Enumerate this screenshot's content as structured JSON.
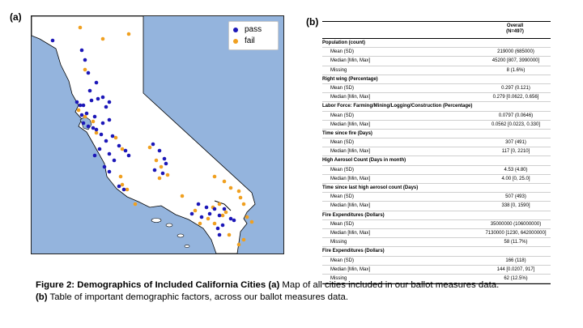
{
  "panels": {
    "a_label": "(a)",
    "b_label": "(b)"
  },
  "map": {
    "legend": [
      {
        "label": "pass",
        "color": "#1c17b8",
        "icon": "pass-dot-icon"
      },
      {
        "label": "fail",
        "color": "#f0a020",
        "icon": "fail-dot-icon"
      }
    ],
    "colors": {
      "ocean": "#94b4dd",
      "land": "#ffffff",
      "border": "#000000"
    }
  },
  "table": {
    "header": {
      "line1": "Overall",
      "line2": "(N=497)"
    },
    "rows": [
      {
        "type": "section",
        "label": "Population (count)",
        "value": ""
      },
      {
        "type": "stat",
        "label": "Mean (SD)",
        "value": "219000 (685000)"
      },
      {
        "type": "stat",
        "label": "Median [Min, Max]",
        "value": "45200 [807, 3990000]"
      },
      {
        "type": "stat",
        "label": "Missing",
        "value": "8 (1.6%)"
      },
      {
        "type": "section",
        "label": "Right wing (Percentage)",
        "value": ""
      },
      {
        "type": "stat",
        "label": "Mean (SD)",
        "value": "0.297 (0.121)"
      },
      {
        "type": "stat",
        "label": "Median [Min, Max]",
        "value": "0.279 [0.0622, 0.656]"
      },
      {
        "type": "section",
        "label": "Labor Force: Farming/Mining/Logging/Construction (Percentage)",
        "value": ""
      },
      {
        "type": "stat",
        "label": "Mean (SD)",
        "value": "0.0797 (0.0646)"
      },
      {
        "type": "stat",
        "label": "Median [Min, Max]",
        "value": "0.0562 [0.0223, 0.330]"
      },
      {
        "type": "section",
        "label": "Time since fire (Days)",
        "value": ""
      },
      {
        "type": "stat",
        "label": "Mean (SD)",
        "value": "307 (491)"
      },
      {
        "type": "stat",
        "label": "Median [Min, Max]",
        "value": "117 [0, 2210]"
      },
      {
        "type": "section",
        "label": "High Aerosol Count (Days in month)",
        "value": ""
      },
      {
        "type": "stat",
        "label": "Mean (SD)",
        "value": "4.53 (4.80)"
      },
      {
        "type": "stat",
        "label": "Median [Min, Max]",
        "value": "4.00 [0, 25.0]"
      },
      {
        "type": "section",
        "label": "Time since last high aerosol count (Days)",
        "value": ""
      },
      {
        "type": "stat",
        "label": "Mean (SD)",
        "value": "507 (493)"
      },
      {
        "type": "stat",
        "label": "Median [Min, Max]",
        "value": "338 [0, 1590]"
      },
      {
        "type": "section",
        "label": "Fire Expenditures (Dollars)",
        "value": ""
      },
      {
        "type": "stat",
        "label": "Mean (SD)",
        "value": "35000000 (106000000)"
      },
      {
        "type": "stat",
        "label": "Median [Min, Max]",
        "value": "7130000 [1230, 642000000]"
      },
      {
        "type": "stat",
        "label": "Missing",
        "value": "58 (11.7%)"
      },
      {
        "type": "section",
        "label": "Fire Expenditures (Dollars)",
        "value": ""
      },
      {
        "type": "stat",
        "label": "Mean (SD)",
        "value": "166 (118)"
      },
      {
        "type": "stat",
        "label": "Median [Min, Max]",
        "value": "144 [0.0207, 917]"
      },
      {
        "type": "stat",
        "label": "Missing",
        "value": "62 (12.5%)"
      }
    ]
  },
  "caption": {
    "bold": "Figure 2: Demographics of Included California Cities (a)",
    "text1": " Map of all cities included in our ballot measures data.",
    "bold2": "(b)",
    "text2": " Table of important demographic factors, across our ballot measures data."
  }
}
